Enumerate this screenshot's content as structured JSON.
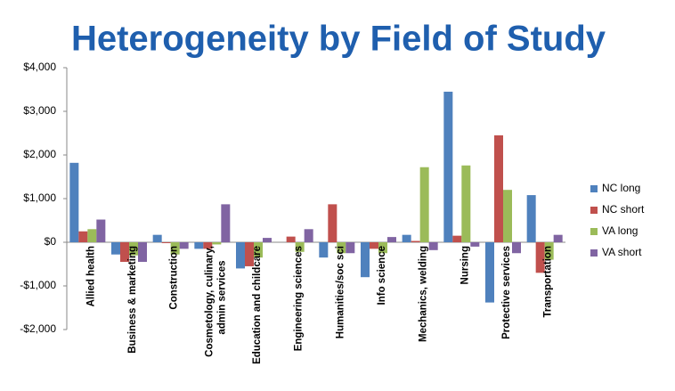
{
  "chart_data": {
    "type": "bar",
    "title": "Heterogeneity by Field of Study",
    "categories": [
      "Allied health",
      "Business & marketing",
      "Construction",
      "Cosmetology, culinary, admin services",
      "Education and childcare",
      "Engineering sciences",
      "Humanities/soc sci",
      "Info science",
      "Mechanics, welding",
      "Nursing",
      "Protective services",
      "Transportation"
    ],
    "series": [
      {
        "name": "NC long",
        "color": "#4F81BD",
        "values": [
          1820,
          -280,
          170,
          -150,
          -600,
          0,
          -350,
          -800,
          170,
          3450,
          -1380,
          1080
        ]
      },
      {
        "name": "NC short",
        "color": "#C0504D",
        "values": [
          250,
          -450,
          -20,
          -150,
          -550,
          130,
          870,
          -150,
          30,
          150,
          2450,
          -700
        ]
      },
      {
        "name": "VA long",
        "color": "#9BBB59",
        "values": [
          300,
          -300,
          -280,
          -50,
          -350,
          -220,
          -250,
          -250,
          1720,
          1760,
          1200,
          -400
        ]
      },
      {
        "name": "VA short",
        "color": "#8064A2",
        "values": [
          520,
          -450,
          -150,
          870,
          100,
          300,
          -250,
          120,
          -180,
          -100,
          -250,
          170
        ]
      }
    ],
    "ylim": [
      -2000,
      4000
    ],
    "yticks": [
      {
        "value": -2000,
        "label": "-$2,000"
      },
      {
        "value": -1000,
        "label": "-$1,000"
      },
      {
        "value": 0,
        "label": "$0"
      },
      {
        "value": 1000,
        "label": "$1,000"
      },
      {
        "value": 2000,
        "label": "$2,000"
      },
      {
        "value": 3000,
        "label": "$3,000"
      },
      {
        "value": 4000,
        "label": "$4,000"
      }
    ],
    "legend": "right"
  }
}
